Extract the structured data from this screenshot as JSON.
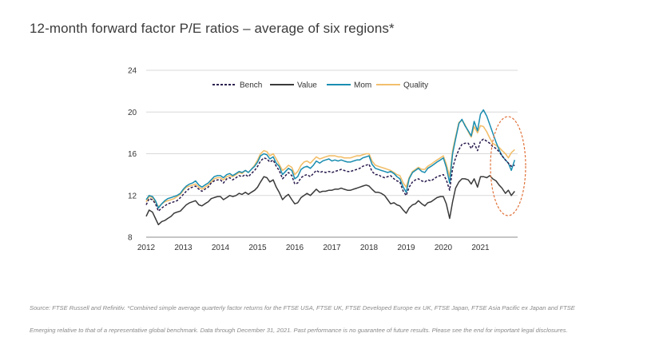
{
  "header": {
    "title": "12-month forward factor P/E ratios – average of six regions*"
  },
  "footer": {
    "source": "Source: FTSE Russell and Refinitiv. *Combined simple average quarterly factor returns for the FTSE USA, FTSE UK, FTSE Developed Europe ex UK, FTSE Japan, FTSE Asia Pacific ex Japan and FTSE",
    "disclaimer": "Emerging relative to that of a representative global benchmark. Data through December 31, 2021. Past performance is no guarantee of future results. Please see the end for important legal disclosures."
  },
  "chart_data": {
    "type": "line",
    "title": "12-month forward factor P/E ratios – average of six regions*",
    "xlabel": "",
    "ylabel": "",
    "xlim": [
      2012,
      2022
    ],
    "ylim": [
      8,
      24
    ],
    "yticks": [
      "8",
      "12",
      "16",
      "20",
      "24"
    ],
    "xticks": [
      "2012",
      "2013",
      "2014",
      "2015",
      "2016",
      "2017",
      "2018",
      "2019",
      "2020",
      "2021"
    ],
    "grid": "horizontal",
    "legend": "top",
    "annotation": "dashed ellipse highlighting late 2021",
    "colors": {
      "Bench": "#2a1b4d",
      "Value": "#3a3a3a",
      "Mom": "#1a8db0",
      "Quality": "#f2bf6c",
      "grid": "#d9d9d9",
      "annotation": "#e0723a"
    },
    "series": [
      {
        "name": "Bench",
        "style": "dashed",
        "x": [
          2012.0,
          2012.08,
          2012.17,
          2012.25,
          2012.33,
          2012.42,
          2012.5,
          2012.58,
          2012.67,
          2012.75,
          2012.83,
          2012.92,
          2013.0,
          2013.08,
          2013.17,
          2013.25,
          2013.33,
          2013.42,
          2013.5,
          2013.58,
          2013.67,
          2013.75,
          2013.83,
          2013.92,
          2014.0,
          2014.08,
          2014.17,
          2014.25,
          2014.33,
          2014.42,
          2014.5,
          2014.58,
          2014.67,
          2014.75,
          2014.83,
          2014.92,
          2015.0,
          2015.08,
          2015.17,
          2015.25,
          2015.33,
          2015.42,
          2015.5,
          2015.58,
          2015.67,
          2015.75,
          2015.83,
          2015.92,
          2016.0,
          2016.08,
          2016.17,
          2016.25,
          2016.33,
          2016.42,
          2016.5,
          2016.58,
          2016.67,
          2016.75,
          2016.83,
          2016.92,
          2017.0,
          2017.08,
          2017.17,
          2017.25,
          2017.33,
          2017.42,
          2017.5,
          2017.58,
          2017.67,
          2017.75,
          2017.83,
          2017.92,
          2018.0,
          2018.08,
          2018.17,
          2018.25,
          2018.33,
          2018.42,
          2018.5,
          2018.58,
          2018.67,
          2018.75,
          2018.83,
          2018.92,
          2019.0,
          2019.08,
          2019.17,
          2019.25,
          2019.33,
          2019.42,
          2019.5,
          2019.58,
          2019.67,
          2019.75,
          2019.83,
          2019.92,
          2020.0,
          2020.08,
          2020.17,
          2020.25,
          2020.33,
          2020.42,
          2020.5,
          2020.58,
          2020.67,
          2020.75,
          2020.83,
          2020.92,
          2021.0,
          2021.08,
          2021.17,
          2021.25,
          2021.33,
          2021.42,
          2021.5,
          2021.58,
          2021.67,
          2021.75,
          2021.83,
          2021.92
        ],
        "values": [
          11.1,
          11.7,
          11.6,
          11.2,
          10.5,
          10.8,
          11.0,
          11.2,
          11.3,
          11.4,
          11.5,
          11.8,
          12.1,
          12.4,
          12.7,
          12.8,
          12.9,
          12.6,
          12.4,
          12.6,
          12.8,
          13.2,
          13.4,
          13.5,
          13.5,
          13.2,
          13.6,
          13.7,
          13.5,
          13.7,
          13.9,
          13.8,
          14.0,
          13.8,
          14.1,
          14.4,
          14.8,
          15.3,
          15.6,
          15.5,
          15.2,
          15.4,
          14.8,
          14.4,
          13.6,
          13.9,
          14.2,
          13.9,
          13.1,
          13.2,
          13.7,
          13.9,
          14.0,
          13.8,
          14.1,
          14.4,
          14.2,
          14.3,
          14.2,
          14.3,
          14.2,
          14.3,
          14.4,
          14.5,
          14.4,
          14.3,
          14.3,
          14.4,
          14.5,
          14.6,
          14.8,
          14.9,
          15.0,
          14.3,
          14.0,
          14.0,
          13.8,
          13.7,
          13.8,
          13.9,
          13.6,
          13.4,
          13.3,
          12.4,
          12.0,
          12.8,
          13.3,
          13.5,
          13.6,
          13.4,
          13.3,
          13.5,
          13.4,
          13.6,
          13.8,
          13.9,
          14.0,
          13.5,
          12.5,
          14.6,
          15.6,
          16.4,
          16.9,
          17.0,
          17.0,
          16.5,
          17.0,
          16.3,
          17.2,
          17.4,
          17.2,
          17.0,
          16.7,
          16.5,
          16.2,
          15.8,
          15.4,
          15.1,
          14.8,
          14.9
        ]
      },
      {
        "name": "Value",
        "style": "solid",
        "x": [
          2012.0,
          2012.08,
          2012.17,
          2012.25,
          2012.33,
          2012.42,
          2012.5,
          2012.58,
          2012.67,
          2012.75,
          2012.83,
          2012.92,
          2013.0,
          2013.08,
          2013.17,
          2013.25,
          2013.33,
          2013.42,
          2013.5,
          2013.58,
          2013.67,
          2013.75,
          2013.83,
          2013.92,
          2014.0,
          2014.08,
          2014.17,
          2014.25,
          2014.33,
          2014.42,
          2014.5,
          2014.58,
          2014.67,
          2014.75,
          2014.83,
          2014.92,
          2015.0,
          2015.08,
          2015.17,
          2015.25,
          2015.33,
          2015.42,
          2015.5,
          2015.58,
          2015.67,
          2015.75,
          2015.83,
          2015.92,
          2016.0,
          2016.08,
          2016.17,
          2016.25,
          2016.33,
          2016.42,
          2016.5,
          2016.58,
          2016.67,
          2016.75,
          2016.83,
          2016.92,
          2017.0,
          2017.08,
          2017.17,
          2017.25,
          2017.33,
          2017.42,
          2017.5,
          2017.58,
          2017.67,
          2017.75,
          2017.83,
          2017.92,
          2018.0,
          2018.08,
          2018.17,
          2018.25,
          2018.33,
          2018.42,
          2018.5,
          2018.58,
          2018.67,
          2018.75,
          2018.83,
          2018.92,
          2019.0,
          2019.08,
          2019.17,
          2019.25,
          2019.33,
          2019.42,
          2019.5,
          2019.58,
          2019.67,
          2019.75,
          2019.83,
          2019.92,
          2020.0,
          2020.08,
          2020.17,
          2020.25,
          2020.33,
          2020.42,
          2020.5,
          2020.58,
          2020.67,
          2020.75,
          2020.83,
          2020.92,
          2021.0,
          2021.08,
          2021.17,
          2021.25,
          2021.33,
          2021.42,
          2021.5,
          2021.58,
          2021.67,
          2021.75,
          2021.83,
          2021.92
        ],
        "values": [
          10.0,
          10.6,
          10.4,
          9.8,
          9.2,
          9.5,
          9.6,
          9.8,
          10.0,
          10.3,
          10.4,
          10.5,
          10.8,
          11.1,
          11.3,
          11.4,
          11.5,
          11.1,
          11.0,
          11.2,
          11.4,
          11.7,
          11.8,
          11.9,
          11.9,
          11.6,
          11.8,
          12.0,
          11.9,
          12.0,
          12.2,
          12.1,
          12.3,
          12.1,
          12.3,
          12.5,
          12.8,
          13.3,
          13.8,
          13.7,
          13.3,
          13.5,
          12.8,
          12.3,
          11.6,
          11.9,
          12.1,
          11.6,
          11.2,
          11.3,
          11.8,
          12.0,
          12.2,
          12.0,
          12.3,
          12.6,
          12.3,
          12.4,
          12.4,
          12.5,
          12.5,
          12.6,
          12.6,
          12.7,
          12.6,
          12.5,
          12.5,
          12.6,
          12.7,
          12.8,
          12.9,
          13.0,
          12.9,
          12.6,
          12.3,
          12.3,
          12.2,
          12.0,
          11.6,
          11.2,
          11.3,
          11.1,
          11.0,
          10.6,
          10.3,
          10.8,
          11.1,
          11.2,
          11.5,
          11.2,
          11.0,
          11.3,
          11.4,
          11.6,
          11.8,
          11.9,
          11.9,
          11.2,
          9.8,
          11.4,
          12.7,
          13.3,
          13.6,
          13.6,
          13.5,
          13.1,
          13.6,
          12.8,
          13.8,
          13.8,
          13.7,
          13.9,
          13.6,
          13.4,
          13.0,
          12.7,
          12.2,
          12.5,
          12.0,
          12.4
        ]
      },
      {
        "name": "Mom",
        "style": "solid",
        "x": [
          2012.0,
          2012.08,
          2012.17,
          2012.25,
          2012.33,
          2012.42,
          2012.5,
          2012.58,
          2012.67,
          2012.75,
          2012.83,
          2012.92,
          2013.0,
          2013.08,
          2013.17,
          2013.25,
          2013.33,
          2013.42,
          2013.5,
          2013.58,
          2013.67,
          2013.75,
          2013.83,
          2013.92,
          2014.0,
          2014.08,
          2014.17,
          2014.25,
          2014.33,
          2014.42,
          2014.5,
          2014.58,
          2014.67,
          2014.75,
          2014.83,
          2014.92,
          2015.0,
          2015.08,
          2015.17,
          2015.25,
          2015.33,
          2015.42,
          2015.5,
          2015.58,
          2015.67,
          2015.75,
          2015.83,
          2015.92,
          2016.0,
          2016.08,
          2016.17,
          2016.25,
          2016.33,
          2016.42,
          2016.5,
          2016.58,
          2016.67,
          2016.75,
          2016.83,
          2016.92,
          2017.0,
          2017.08,
          2017.17,
          2017.25,
          2017.33,
          2017.42,
          2017.5,
          2017.58,
          2017.67,
          2017.75,
          2017.83,
          2017.92,
          2018.0,
          2018.08,
          2018.17,
          2018.25,
          2018.33,
          2018.42,
          2018.5,
          2018.58,
          2018.67,
          2018.75,
          2018.83,
          2018.92,
          2019.0,
          2019.08,
          2019.17,
          2019.25,
          2019.33,
          2019.42,
          2019.5,
          2019.58,
          2019.67,
          2019.75,
          2019.83,
          2019.92,
          2020.0,
          2020.08,
          2020.17,
          2020.25,
          2020.33,
          2020.42,
          2020.5,
          2020.58,
          2020.67,
          2020.75,
          2020.83,
          2020.92,
          2021.0,
          2021.08,
          2021.17,
          2021.25,
          2021.33,
          2021.42,
          2021.5,
          2021.58,
          2021.67,
          2021.75,
          2021.83,
          2021.92
        ],
        "values": [
          11.6,
          12.0,
          11.9,
          11.5,
          10.8,
          11.2,
          11.5,
          11.7,
          11.8,
          11.9,
          12.0,
          12.2,
          12.6,
          12.9,
          13.1,
          13.2,
          13.4,
          13.0,
          12.8,
          13.0,
          13.2,
          13.5,
          13.8,
          13.9,
          13.9,
          13.7,
          14.0,
          14.1,
          13.9,
          14.1,
          14.3,
          14.2,
          14.4,
          14.2,
          14.5,
          14.8,
          15.2,
          15.8,
          16.0,
          15.9,
          15.5,
          15.7,
          15.1,
          14.8,
          14.0,
          14.3,
          14.6,
          14.4,
          13.6,
          13.8,
          14.5,
          14.7,
          14.8,
          14.6,
          14.9,
          15.3,
          15.1,
          15.3,
          15.4,
          15.5,
          15.3,
          15.4,
          15.3,
          15.4,
          15.3,
          15.2,
          15.2,
          15.3,
          15.4,
          15.4,
          15.6,
          15.7,
          15.8,
          15.0,
          14.6,
          14.5,
          14.4,
          14.3,
          14.2,
          14.3,
          14.1,
          13.8,
          13.6,
          12.8,
          12.3,
          13.6,
          14.2,
          14.4,
          14.6,
          14.3,
          14.2,
          14.6,
          14.8,
          15.0,
          15.2,
          15.4,
          15.6,
          14.7,
          13.2,
          16.0,
          17.4,
          18.9,
          19.3,
          18.7,
          18.2,
          17.7,
          19.1,
          18.2,
          19.8,
          20.2,
          19.6,
          18.8,
          18.0,
          17.1,
          16.4,
          15.8,
          15.4,
          15.1,
          14.4,
          15.4
        ]
      },
      {
        "name": "Quality",
        "style": "solid",
        "x": [
          2012.0,
          2012.08,
          2012.17,
          2012.25,
          2012.33,
          2012.42,
          2012.5,
          2012.58,
          2012.67,
          2012.75,
          2012.83,
          2012.92,
          2013.0,
          2013.08,
          2013.17,
          2013.25,
          2013.33,
          2013.42,
          2013.5,
          2013.58,
          2013.67,
          2013.75,
          2013.83,
          2013.92,
          2014.0,
          2014.08,
          2014.17,
          2014.25,
          2014.33,
          2014.42,
          2014.5,
          2014.58,
          2014.67,
          2014.75,
          2014.83,
          2014.92,
          2015.0,
          2015.08,
          2015.17,
          2015.25,
          2015.33,
          2015.42,
          2015.5,
          2015.58,
          2015.67,
          2015.75,
          2015.83,
          2015.92,
          2016.0,
          2016.08,
          2016.17,
          2016.25,
          2016.33,
          2016.42,
          2016.5,
          2016.58,
          2016.67,
          2016.75,
          2016.83,
          2016.92,
          2017.0,
          2017.08,
          2017.17,
          2017.25,
          2017.33,
          2017.42,
          2017.5,
          2017.58,
          2017.67,
          2017.75,
          2017.83,
          2017.92,
          2018.0,
          2018.08,
          2018.17,
          2018.25,
          2018.33,
          2018.42,
          2018.5,
          2018.58,
          2018.67,
          2018.75,
          2018.83,
          2018.92,
          2019.0,
          2019.08,
          2019.17,
          2019.25,
          2019.33,
          2019.42,
          2019.5,
          2019.58,
          2019.67,
          2019.75,
          2019.83,
          2019.92,
          2020.0,
          2020.08,
          2020.17,
          2020.25,
          2020.33,
          2020.42,
          2020.5,
          2020.58,
          2020.67,
          2020.75,
          2020.83,
          2020.92,
          2021.0,
          2021.08,
          2021.17,
          2021.25,
          2021.33,
          2021.42,
          2021.5,
          2021.58,
          2021.67,
          2021.75,
          2021.83,
          2021.92
        ],
        "values": [
          11.4,
          11.9,
          11.8,
          11.4,
          10.9,
          11.2,
          11.4,
          11.5,
          11.6,
          11.7,
          11.9,
          12.1,
          12.5,
          12.8,
          12.9,
          13.0,
          13.1,
          12.8,
          12.6,
          12.8,
          13.0,
          13.3,
          13.6,
          13.7,
          13.7,
          13.5,
          13.8,
          13.9,
          13.8,
          14.0,
          14.2,
          14.1,
          14.4,
          14.2,
          14.5,
          14.9,
          15.4,
          16.0,
          16.3,
          16.2,
          15.8,
          16.0,
          15.5,
          15.0,
          14.4,
          14.6,
          14.9,
          14.7,
          14.0,
          14.3,
          14.9,
          15.2,
          15.3,
          15.1,
          15.4,
          15.7,
          15.5,
          15.6,
          15.7,
          15.8,
          15.8,
          15.8,
          15.7,
          15.7,
          15.6,
          15.6,
          15.6,
          15.7,
          15.8,
          15.8,
          15.9,
          16.0,
          16.0,
          15.3,
          14.9,
          14.8,
          14.7,
          14.6,
          14.5,
          14.4,
          14.2,
          14.0,
          13.9,
          13.2,
          12.8,
          13.7,
          14.3,
          14.5,
          14.7,
          14.5,
          14.5,
          14.8,
          15.0,
          15.2,
          15.4,
          15.6,
          15.8,
          15.0,
          13.8,
          16.3,
          17.6,
          19.0,
          19.2,
          18.8,
          18.1,
          17.6,
          18.6,
          18.0,
          18.7,
          18.6,
          18.1,
          17.5,
          17.0,
          16.8,
          16.6,
          16.3,
          16.0,
          15.6,
          16.1,
          16.4
        ]
      }
    ]
  }
}
